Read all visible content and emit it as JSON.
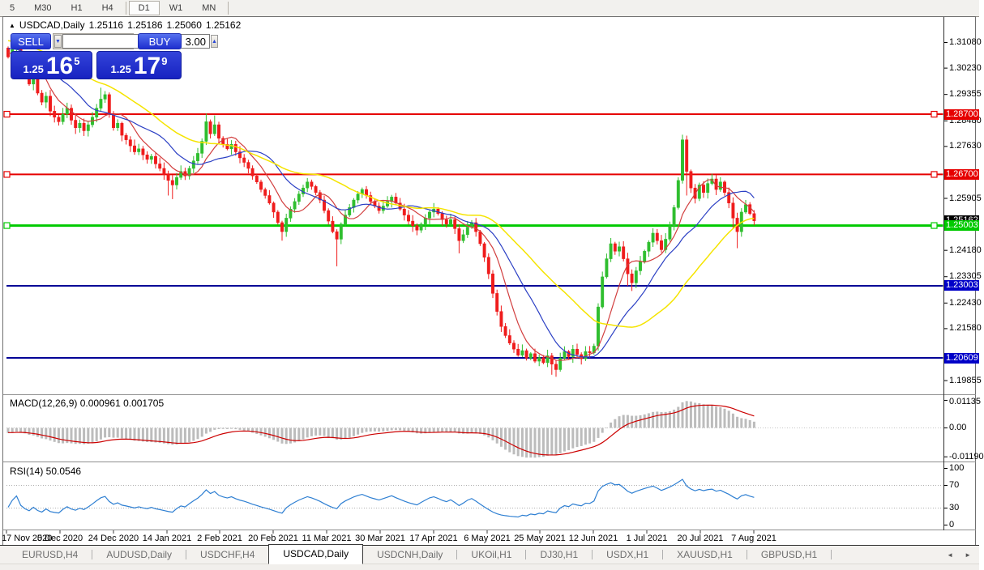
{
  "toolbar": {
    "timeframes": [
      "5",
      "M30",
      "H1",
      "H4",
      "D1",
      "W1",
      "MN"
    ],
    "selected": "D1"
  },
  "chart_header": {
    "marker": "▲",
    "symbol": "USDCAD,Daily",
    "open": "1.25116",
    "high": "1.25186",
    "low": "1.25060",
    "close": "1.25162"
  },
  "trade_panel": {
    "sell_label": "SELL",
    "buy_label": "BUY",
    "volume": "3.00",
    "sell_price": {
      "base": "1.25",
      "big": "16",
      "sup": "5"
    },
    "buy_price": {
      "base": "1.25",
      "big": "17",
      "sup": "9"
    }
  },
  "price_scale": {
    "ticks": [
      "1.31080",
      "1.30230",
      "1.29355",
      "1.28480",
      "1.27630",
      "1.25905",
      "1.24180",
      "1.23305",
      "1.22430",
      "1.21580",
      "1.19855"
    ],
    "badges": [
      {
        "label": "1.28700",
        "price": 1.287,
        "color": "#e60000"
      },
      {
        "label": "1.26700",
        "price": 1.267,
        "color": "#e60000"
      },
      {
        "label": "1.25162",
        "price": 1.25162,
        "color": "#000000"
      },
      {
        "label": "1.25003",
        "price": 1.25003,
        "color": "#00ca00"
      },
      {
        "label": "1.23003",
        "price": 1.23003,
        "color": "#0000c8"
      },
      {
        "label": "1.20609",
        "price": 1.20609,
        "color": "#0000c8"
      }
    ]
  },
  "indicator_panels": {
    "macd": {
      "title": "MACD(12,26,9) 0.000961 0.001705",
      "scale": [
        {
          "label": "0.01135",
          "value": 0.01135
        },
        {
          "label": "0.00",
          "value": 0
        },
        {
          "label": "-0.01190",
          "value": -0.0119
        }
      ]
    },
    "rsi": {
      "title": "RSI(14) 50.0546",
      "scale": [
        {
          "label": "100",
          "value": 100
        },
        {
          "label": "70",
          "value": 70
        },
        {
          "label": "30",
          "value": 30
        },
        {
          "label": "0",
          "value": 0
        }
      ]
    }
  },
  "tabs": {
    "items": [
      "EURUSD,H4",
      "AUDUSD,Daily",
      "USDCHF,H4",
      "USDCAD,Daily",
      "USDCNH,Daily",
      "UKOil,H1",
      "DJ30,H1",
      "USDX,H1",
      "XAUUSD,H1",
      "GBPUSD,H1"
    ],
    "active": "USDCAD,Daily",
    "scroll_left": "◄",
    "scroll_right": "►"
  },
  "chart_data": {
    "type": "candlestick",
    "symbol": "USDCAD",
    "timeframe": "Daily",
    "title": "USDCAD,Daily 1.25116 1.25186 1.25060 1.25162",
    "x_tick_labels": [
      "17 Nov 2020",
      "5 Dec 2020",
      "24 Dec 2020",
      "14 Jan 2021",
      "2 Feb 2021",
      "20 Feb 2021",
      "11 Mar 2021",
      "30 Mar 2021",
      "17 Apr 2021",
      "6 May 2021",
      "25 May 2021",
      "12 Jun 2021",
      "1 Jul 2021",
      "20 Jul 2021",
      "7 Aug 2021"
    ],
    "y_range_visible": [
      1.194,
      1.3163
    ],
    "open_first": 1.309,
    "closes": [
      1.306,
      1.3085,
      1.3105,
      1.304,
      1.3,
      1.297,
      1.299,
      1.294,
      1.291,
      1.293,
      1.288,
      1.286,
      1.2845,
      1.287,
      1.289,
      1.285,
      1.2825,
      1.284,
      1.2815,
      1.2835,
      1.286,
      1.289,
      1.292,
      1.2935,
      1.287,
      1.2825,
      1.284,
      1.28,
      1.2785,
      1.2765,
      1.2745,
      1.2755,
      1.2735,
      1.272,
      1.273,
      1.2705,
      1.269,
      1.267,
      1.265,
      1.2635,
      1.266,
      1.268,
      1.2665,
      1.269,
      1.2715,
      1.274,
      1.278,
      1.2845,
      1.2805,
      1.2835,
      1.279,
      1.277,
      1.2755,
      1.277,
      1.2745,
      1.2725,
      1.271,
      1.269,
      1.2665,
      1.2645,
      1.262,
      1.26,
      1.2575,
      1.2545,
      1.251,
      1.248,
      1.2525,
      1.2555,
      1.258,
      1.2605,
      1.2625,
      1.2645,
      1.263,
      1.261,
      1.2585,
      1.255,
      1.2515,
      1.248,
      1.2455,
      1.2505,
      1.2535,
      1.256,
      1.2585,
      1.2605,
      1.262,
      1.26,
      1.258,
      1.2565,
      1.255,
      1.2565,
      1.258,
      1.2595,
      1.2575,
      1.2555,
      1.2535,
      1.2515,
      1.25,
      1.2485,
      1.2505,
      1.2525,
      1.2545,
      1.2555,
      1.254,
      1.252,
      1.2505,
      1.252,
      1.249,
      1.245,
      1.247,
      1.2495,
      1.251,
      1.248,
      1.244,
      1.2395,
      1.234,
      1.2275,
      1.2215,
      1.2165,
      1.2135,
      1.211,
      1.209,
      1.207,
      1.2085,
      1.206,
      1.2075,
      1.205,
      1.2062,
      1.2045,
      1.2068,
      1.204,
      1.2022,
      1.206,
      1.2082,
      1.2065,
      1.209,
      1.2072,
      1.2058,
      1.2082,
      1.2078,
      1.21,
      1.223,
      1.233,
      1.239,
      1.244,
      1.2415,
      1.243,
      1.239,
      1.234,
      1.231,
      1.235,
      1.238,
      1.2415,
      1.2445,
      1.2475,
      1.245,
      1.242,
      1.2455,
      1.25,
      1.256,
      1.265,
      1.2785,
      1.268,
      1.2625,
      1.259,
      1.2635,
      1.261,
      1.264,
      1.2655,
      1.262,
      1.2645,
      1.261,
      1.2575,
      1.2525,
      1.248,
      1.2545,
      1.257,
      1.254,
      1.25162
    ],
    "default_wick": 0.0016,
    "special_highs": {
      "2": 1.313,
      "22": 1.2958,
      "47": 1.2872,
      "49": 1.2866,
      "140": 1.2242,
      "160": 1.2802
    },
    "special_lows": {
      "38": 1.26,
      "39": 1.2588,
      "65": 1.245,
      "78": 1.2365,
      "97": 1.2468,
      "107": 1.2408,
      "129": 1.2005,
      "130": 1.1998,
      "140": 1.2085,
      "147": 1.23,
      "148": 1.2283,
      "161": 1.26,
      "172": 1.249,
      "173": 1.2425
    },
    "up_color": "#2fbe2f",
    "down_color": "#ef1c1c",
    "moving_averages": [
      {
        "period": 8,
        "color": "#d23f3f"
      },
      {
        "period": 17,
        "color": "#2b3fc4"
      },
      {
        "period": 34,
        "color": "#f5e400"
      }
    ],
    "hlines": [
      {
        "price": 1.287,
        "color": "#e60000",
        "width": 2,
        "selected": true
      },
      {
        "price": 1.267,
        "color": "#e60000",
        "width": 2,
        "selected": true
      },
      {
        "price": 1.25003,
        "color": "#00ca00",
        "width": 3,
        "selected": true
      },
      {
        "price": 1.23003,
        "color": "#000096",
        "width": 2,
        "selected": false
      },
      {
        "price": 1.20609,
        "color": "#000096",
        "width": 2,
        "selected": false
      }
    ],
    "current_price": 1.25162,
    "macd": {
      "fast": 12,
      "slow": 26,
      "signal_period": 9,
      "hist_color": "#bcbcbc",
      "line_color": "#cc0000",
      "current": 0.000961,
      "current_signal": 0.001705
    },
    "rsi": {
      "period": 14,
      "color": "#2e7fd2",
      "levels": [
        70,
        30
      ],
      "current": 50.0546
    }
  }
}
